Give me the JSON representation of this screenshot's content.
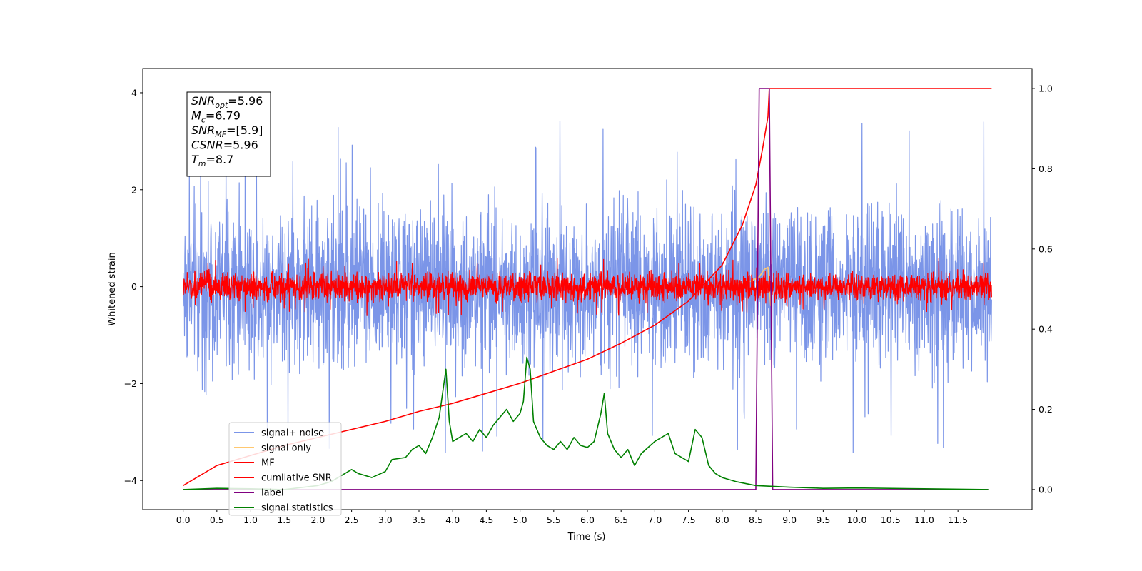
{
  "chart_data": {
    "type": "line",
    "xlabel": "Time (s)",
    "ylabel": "Whitened strain",
    "xlim": [
      -0.6,
      12.6
    ],
    "ylim": [
      -4.6,
      4.5
    ],
    "ylim_right": [
      -0.05,
      1.05
    ],
    "x_ticks": [
      "0.0",
      "0.5",
      "1.0",
      "1.5",
      "2.0",
      "2.5",
      "3.0",
      "3.5",
      "4.0",
      "4.5",
      "5.0",
      "5.5",
      "6.0",
      "6.5",
      "7.0",
      "7.5",
      "8.0",
      "8.5",
      "9.0",
      "9.5",
      "10.0",
      "10.5",
      "11.0",
      "11.5"
    ],
    "y_ticks_left": [
      "4",
      "2",
      "0",
      "−2",
      "−4"
    ],
    "y_ticks_right": [
      "1.0",
      "0.8",
      "0.6",
      "0.4",
      "0.2",
      "0.0"
    ],
    "legend_position": "lower-left",
    "legend": [
      {
        "label": "signal+ noise",
        "color": "#7b95e8"
      },
      {
        "label": "signal only",
        "color": "#ffc870"
      },
      {
        "label": "MF",
        "color": "#ff0000"
      },
      {
        "label": "cumilative SNR",
        "color": "#ff0000"
      },
      {
        "label": "label",
        "color": "#800080"
      },
      {
        "label": "signal statistics",
        "color": "#008000"
      }
    ],
    "annotation": {
      "lines": [
        {
          "base": "SNR",
          "sub": "opt",
          "rest": "=5.96"
        },
        {
          "base": "M",
          "sub": "c",
          "rest": "=6.79"
        },
        {
          "base": "SNR",
          "sub": "MF",
          "rest": "=[5.9]"
        },
        {
          "base": "CSNR",
          "sub": "",
          "rest": "=5.96"
        },
        {
          "base": "T",
          "sub": "m",
          "rest": "=8.7"
        }
      ]
    },
    "series": [
      {
        "name": "signal+ noise",
        "axis": "left",
        "color": "#7b95e8",
        "noise": {
          "x_start": 0.0,
          "x_end": 12.0,
          "amplitude": 1.0,
          "peaks": 3.5
        }
      },
      {
        "name": "signal only",
        "axis": "left",
        "color": "#ffc870",
        "x": [
          8.2,
          8.4,
          8.55,
          8.62,
          8.68,
          8.72
        ],
        "y": [
          0.05,
          0.1,
          0.2,
          0.35,
          0.4,
          -0.4
        ]
      },
      {
        "name": "MF",
        "axis": "left",
        "color": "#ff0000",
        "noise": {
          "x_start": 0.0,
          "x_end": 12.0,
          "amplitude": 0.18,
          "peaks": 0.6
        }
      },
      {
        "name": "cumilative SNR",
        "axis": "right",
        "color": "#ff0000",
        "x": [
          0.0,
          0.5,
          1.0,
          1.5,
          2.0,
          2.5,
          3.0,
          3.5,
          4.0,
          4.5,
          5.0,
          5.5,
          6.0,
          6.5,
          7.0,
          7.5,
          8.0,
          8.3,
          8.5,
          8.6,
          8.68,
          8.7,
          9.0,
          9.5,
          10.0,
          10.5,
          11.0,
          11.5,
          12.0
        ],
        "y": [
          0.01,
          0.06,
          0.085,
          0.11,
          0.13,
          0.15,
          0.17,
          0.195,
          0.215,
          0.24,
          0.265,
          0.295,
          0.325,
          0.365,
          0.41,
          0.47,
          0.56,
          0.66,
          0.76,
          0.85,
          0.93,
          1.0,
          1.0,
          1.0,
          1.0,
          1.0,
          1.0,
          1.0,
          1.0
        ]
      },
      {
        "name": "label",
        "axis": "right",
        "color": "#800080",
        "x": [
          0.0,
          8.5,
          8.55,
          8.7,
          8.75,
          11.95
        ],
        "y": [
          0.0,
          0.0,
          1.0,
          1.0,
          0.0,
          0.0
        ]
      },
      {
        "name": "signal statistics",
        "axis": "right",
        "color": "#008000",
        "x": [
          0.0,
          0.5,
          1.0,
          1.5,
          2.0,
          2.2,
          2.3,
          2.5,
          2.6,
          2.8,
          3.0,
          3.1,
          3.3,
          3.4,
          3.5,
          3.6,
          3.7,
          3.8,
          3.9,
          3.95,
          4.0,
          4.1,
          4.2,
          4.3,
          4.4,
          4.5,
          4.6,
          4.7,
          4.8,
          4.9,
          5.0,
          5.05,
          5.1,
          5.15,
          5.2,
          5.3,
          5.4,
          5.5,
          5.6,
          5.7,
          5.8,
          5.9,
          6.0,
          6.1,
          6.2,
          6.25,
          6.3,
          6.4,
          6.5,
          6.6,
          6.7,
          6.8,
          7.0,
          7.2,
          7.3,
          7.5,
          7.6,
          7.7,
          7.8,
          7.9,
          8.0,
          8.2,
          8.5,
          9.0,
          9.5,
          10.0,
          11.0,
          11.95
        ],
        "y": [
          0.0,
          0.003,
          0.002,
          0.0,
          0.01,
          0.02,
          0.03,
          0.05,
          0.04,
          0.03,
          0.045,
          0.075,
          0.08,
          0.1,
          0.11,
          0.09,
          0.13,
          0.18,
          0.3,
          0.17,
          0.12,
          0.13,
          0.14,
          0.12,
          0.15,
          0.13,
          0.16,
          0.18,
          0.2,
          0.17,
          0.19,
          0.22,
          0.33,
          0.3,
          0.17,
          0.13,
          0.11,
          0.1,
          0.12,
          0.1,
          0.13,
          0.11,
          0.105,
          0.12,
          0.19,
          0.24,
          0.14,
          0.1,
          0.08,
          0.1,
          0.06,
          0.09,
          0.12,
          0.14,
          0.09,
          0.07,
          0.15,
          0.13,
          0.06,
          0.04,
          0.03,
          0.02,
          0.01,
          0.006,
          0.003,
          0.004,
          0.002,
          0.0
        ]
      }
    ]
  }
}
